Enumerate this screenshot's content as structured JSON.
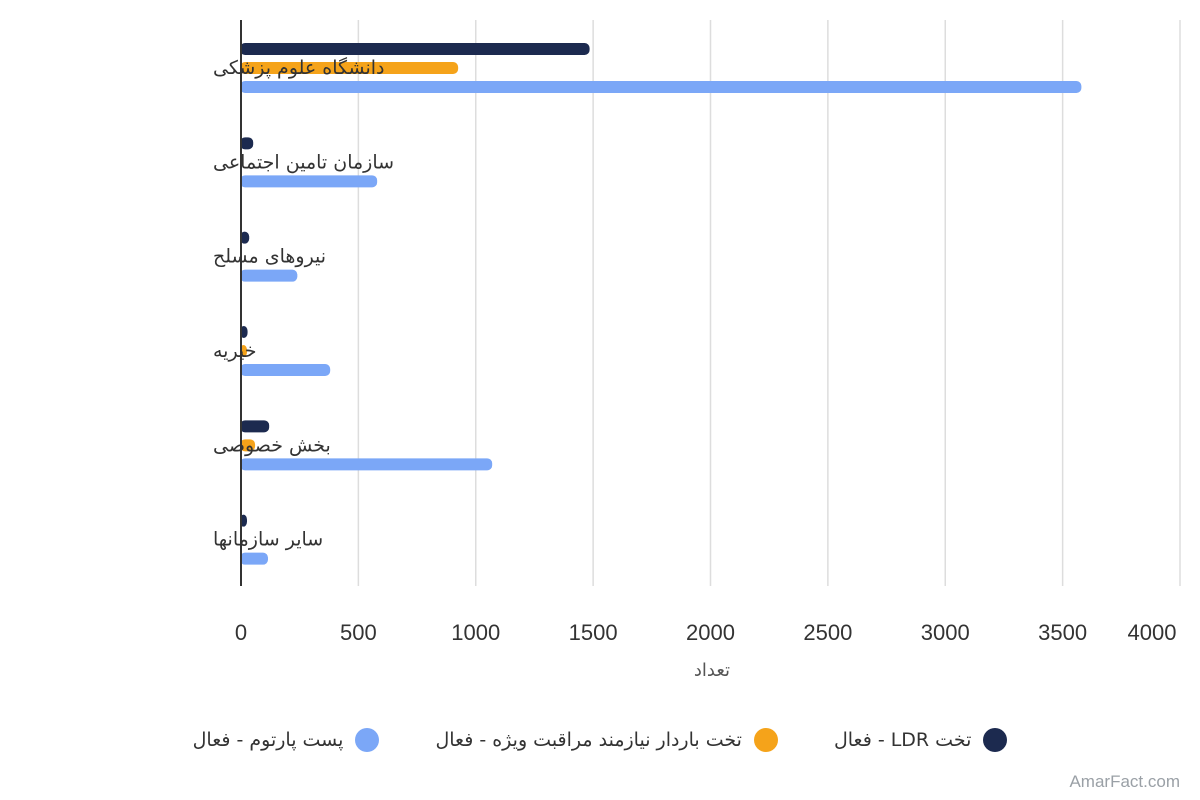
{
  "chart_data": {
    "type": "bar",
    "orientation": "horizontal",
    "categories": [
      "دانشگاه علوم پزشکی",
      "سازمان تامین اجتماعی",
      "نیروهای مسلح",
      "خیریه",
      "بخش خصوصی",
      "سایر سازمانها"
    ],
    "series": [
      {
        "name": "تخت LDR - فعال",
        "color": "#1c2a4f",
        "values": [
          1485,
          52,
          35,
          28,
          120,
          5
        ]
      },
      {
        "name": "تخت باردار نیازمند مراقبت ویژه - فعال",
        "color": "#f5a31a",
        "values": [
          925,
          0,
          0,
          8,
          60,
          0
        ]
      },
      {
        "name": "پست پارتوم - فعال",
        "color": "#7ba7f7",
        "values": [
          3580,
          580,
          240,
          380,
          1070,
          115
        ]
      }
    ],
    "xlabel": "تعداد",
    "ylabel": "",
    "xlim": [
      0,
      4000
    ],
    "xticks": [
      0,
      500,
      1000,
      1500,
      2000,
      2500,
      3000,
      3500,
      4000
    ],
    "grid": true,
    "legend_position": "bottom"
  },
  "watermark": "AmarFact.com"
}
